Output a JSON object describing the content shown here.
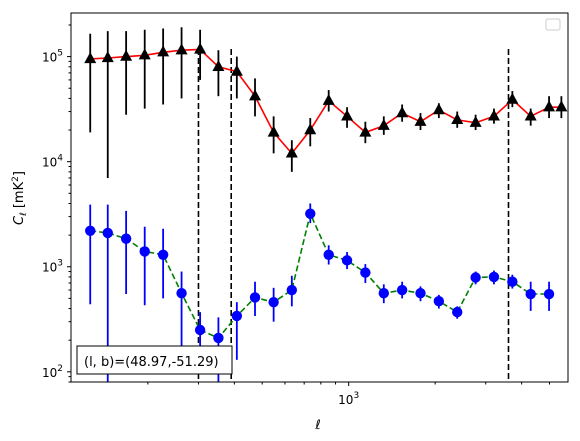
{
  "chart_data": {
    "type": "line",
    "x_scale": "log",
    "y_scale": "log",
    "xlim": [
      108,
      5800
    ],
    "ylim": [
      80,
      260000
    ],
    "xlabel": "ℓ",
    "ylabel_main": "C",
    "ylabel_sub": "ℓ",
    "ylabel_unit_prefix": "[mK",
    "ylabel_unit_exp": "2",
    "ylabel_unit_suffix": "]",
    "x_ticks": [
      {
        "value": 1000,
        "base": "10",
        "exp": "3"
      }
    ],
    "y_ticks": [
      {
        "value": 100,
        "base": "10",
        "exp": "2"
      },
      {
        "value": 1000,
        "base": "10",
        "exp": "3"
      },
      {
        "value": 10000,
        "base": "10",
        "exp": "4"
      },
      {
        "value": 100000,
        "base": "10",
        "exp": "5"
      }
    ],
    "vlines": [
      300,
      390,
      3600
    ],
    "legend": {
      "placement": "top-right",
      "entries": []
    },
    "annotation": {
      "text": "(l, b)=(48.97,-51.29)",
      "placement": "bottom-left"
    },
    "series": [
      {
        "color": "#ff0000",
        "marker": "triangle",
        "marker_color": "#000000",
        "errbar_color": "#000000",
        "linestyle": "solid",
        "x": [
          126,
          145,
          168,
          195,
          226,
          262,
          304,
          352,
          408,
          472,
          548,
          634,
          735,
          852,
          987,
          1143,
          1325,
          1535,
          1778,
          2060,
          2387,
          2766,
          3204,
          3713,
          4301,
          4983,
          5500
        ],
        "y": [
          95000,
          97000,
          100000,
          103000,
          110000,
          115000,
          117000,
          80000,
          72000,
          42000,
          19000,
          12000,
          20000,
          38000,
          27000,
          19000,
          22000,
          29000,
          24000,
          31000,
          25000,
          23500,
          27000,
          39000,
          27000,
          33000,
          33000
        ],
        "err_low": [
          19000,
          7000,
          28000,
          32000,
          35000,
          40000,
          60000,
          42000,
          40000,
          27000,
          12000,
          8000,
          14000,
          30000,
          21000,
          15000,
          18000,
          24000,
          20000,
          26000,
          21000,
          20000,
          23000,
          33000,
          22000,
          26000,
          26000
        ],
        "err_high": [
          165000,
          175000,
          175000,
          180000,
          185000,
          190000,
          180000,
          115000,
          100000,
          62000,
          27000,
          16000,
          26000,
          48000,
          33000,
          24000,
          27000,
          35000,
          29000,
          36000,
          30000,
          28000,
          32000,
          47000,
          32000,
          42000,
          42000
        ]
      },
      {
        "color": "#008000",
        "marker": "circle",
        "marker_color": "#0000ff",
        "errbar_color": "#0000ff",
        "linestyle": "dashed",
        "x": [
          126,
          145,
          168,
          195,
          226,
          262,
          304,
          352,
          408,
          472,
          548,
          634,
          735,
          852,
          987,
          1143,
          1325,
          1535,
          1778,
          2060,
          2387,
          2766,
          3204,
          3713,
          4301,
          4983
        ],
        "y": [
          2200,
          2100,
          1850,
          1400,
          1300,
          560,
          250,
          210,
          340,
          510,
          460,
          600,
          3200,
          1300,
          1150,
          880,
          560,
          600,
          560,
          470,
          370,
          790,
          800,
          720,
          550,
          550
        ],
        "err_low": [
          440,
          80,
          550,
          430,
          500,
          150,
          100,
          80,
          130,
          340,
          300,
          420,
          2600,
          1050,
          950,
          700,
          450,
          500,
          470,
          400,
          320,
          680,
          680,
          620,
          380,
          380
        ],
        "err_high": [
          3900,
          3900,
          3400,
          2400,
          2300,
          900,
          370,
          330,
          460,
          720,
          630,
          820,
          4000,
          1600,
          1380,
          1060,
          680,
          720,
          650,
          540,
          420,
          900,
          920,
          840,
          720,
          720
        ]
      }
    ]
  }
}
